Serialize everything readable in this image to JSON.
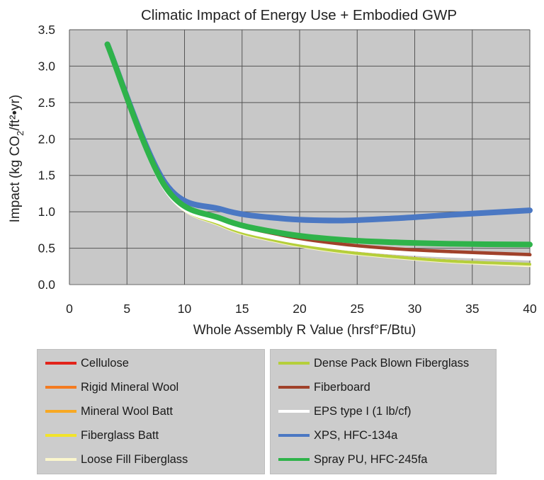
{
  "chart_data": {
    "type": "line",
    "title": "Climatic Impact of Energy Use + Embodied GWP",
    "xlabel": "Whole Assembly R Value (hrsf°F/Btu)",
    "ylabel_parts": [
      "Impact  (kg CO",
      "2",
      "/ft²•yr)"
    ],
    "xlim": [
      0,
      40
    ],
    "ylim": [
      0,
      3.5
    ],
    "xticks": [
      "0",
      "5",
      "10",
      "15",
      "20",
      "25",
      "30",
      "35",
      "40"
    ],
    "yticks": [
      "0.0",
      "0.5",
      "1.0",
      "1.5",
      "2.0",
      "2.5",
      "3.0",
      "3.5"
    ],
    "grid": true,
    "legend_position": "bottom",
    "plot_background": "#c8c8c8",
    "series": [
      {
        "name": "Cellulose",
        "color": "#e2231a",
        "width": 4,
        "x": [
          3.3,
          8.3,
          13.3,
          18.3,
          23.3,
          28.3,
          33.3,
          40
        ],
        "y": [
          3.28,
          1.31,
          0.81,
          0.59,
          0.46,
          0.38,
          0.32,
          0.27
        ]
      },
      {
        "name": "Rigid Mineral Wool",
        "color": "#f47b20",
        "width": 4,
        "x": [
          3.3,
          8.3,
          13.3,
          18.3,
          23.3,
          28.3,
          33.3,
          40
        ],
        "y": [
          3.28,
          1.31,
          0.81,
          0.59,
          0.46,
          0.38,
          0.32,
          0.27
        ]
      },
      {
        "name": "Mineral Wool Batt",
        "color": "#f7a823",
        "width": 4,
        "x": [
          3.3,
          8.3,
          13.3,
          18.3,
          23.3,
          28.3,
          33.3,
          40
        ],
        "y": [
          3.28,
          1.31,
          0.81,
          0.59,
          0.46,
          0.38,
          0.32,
          0.27
        ]
      },
      {
        "name": "Fiberglass Batt",
        "color": "#f2e32a",
        "width": 4,
        "x": [
          3.3,
          8.3,
          13.3,
          18.3,
          23.3,
          28.3,
          33.3,
          40
        ],
        "y": [
          3.28,
          1.31,
          0.81,
          0.59,
          0.46,
          0.38,
          0.32,
          0.27
        ]
      },
      {
        "name": "Loose Fill Fiberglass",
        "color": "#fbf6cc",
        "width": 4,
        "x": [
          3.3,
          8.3,
          13.3,
          18.3,
          23.3,
          28.3,
          33.3,
          40
        ],
        "y": [
          3.28,
          1.31,
          0.8,
          0.58,
          0.45,
          0.37,
          0.31,
          0.26
        ]
      },
      {
        "name": "Dense Pack Blown Fiberglass",
        "color": "#b5cf3b",
        "width": 4,
        "x": [
          3.3,
          8.3,
          13.3,
          18.3,
          23.3,
          28.3,
          33.3,
          40
        ],
        "y": [
          3.28,
          1.32,
          0.81,
          0.59,
          0.46,
          0.38,
          0.32,
          0.28
        ]
      },
      {
        "name": "Fiberboard",
        "color": "#a0412a",
        "width": 5,
        "x": [
          3.3,
          8.3,
          13.3,
          18.3,
          23.3,
          28.3,
          33.3,
          40
        ],
        "y": [
          3.28,
          1.33,
          0.86,
          0.67,
          0.56,
          0.49,
          0.45,
          0.41
        ]
      },
      {
        "name": "EPS type I (1 lb/cf)",
        "color": "#ffffff",
        "width": 6,
        "x": [
          3.3,
          8.3,
          13.3,
          18.3,
          23.3,
          28.3,
          33.3,
          40
        ],
        "y": [
          3.28,
          1.32,
          0.84,
          0.63,
          0.51,
          0.44,
          0.4,
          0.36
        ]
      },
      {
        "name": "XPS, HFC-134a",
        "color": "#4b78c3",
        "width": 8,
        "x": [
          3.3,
          8.3,
          13.3,
          18.3,
          23.3,
          28.3,
          33.3,
          40
        ],
        "y": [
          3.3,
          1.4,
          1.03,
          0.91,
          0.88,
          0.91,
          0.96,
          1.02
        ]
      },
      {
        "name": "Spray PU, HFC-245fa",
        "color": "#2fb34a",
        "width": 8,
        "x": [
          3.3,
          8.3,
          13.3,
          18.3,
          23.3,
          28.3,
          33.3,
          40
        ],
        "y": [
          3.3,
          1.35,
          0.9,
          0.71,
          0.62,
          0.58,
          0.56,
          0.55
        ]
      }
    ]
  },
  "legend": {
    "left": [
      {
        "label": "Cellulose",
        "color": "#e2231a"
      },
      {
        "label": "Rigid Mineral Wool",
        "color": "#f47b20"
      },
      {
        "label": "Mineral Wool Batt",
        "color": "#f7a823"
      },
      {
        "label": "Fiberglass Batt",
        "color": "#f2e32a"
      },
      {
        "label": "Loose Fill Fiberglass",
        "color": "#fbf6cc"
      }
    ],
    "right": [
      {
        "label": "Dense Pack Blown Fiberglass",
        "color": "#b5cf3b"
      },
      {
        "label": "Fiberboard",
        "color": "#a0412a"
      },
      {
        "label": "EPS type I (1 lb/cf)",
        "color": "#ffffff"
      },
      {
        "label": "XPS, HFC-134a",
        "color": "#4b78c3"
      },
      {
        "label": "Spray PU, HFC-245fa",
        "color": "#2fb34a"
      }
    ]
  }
}
